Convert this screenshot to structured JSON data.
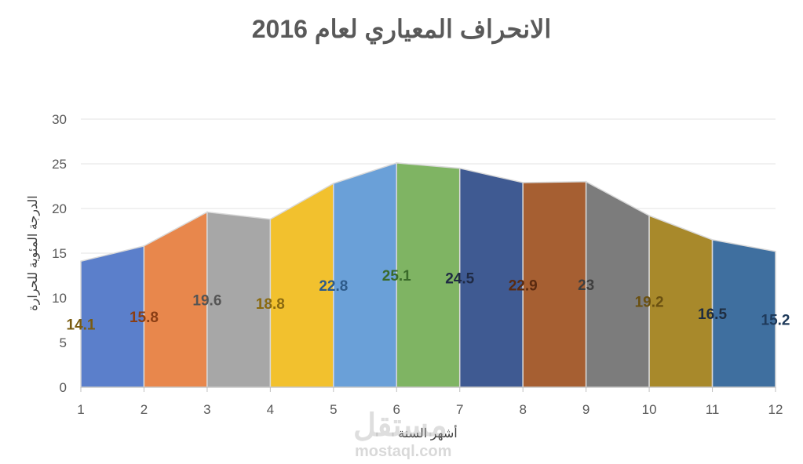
{
  "chart_data": {
    "type": "area",
    "title": "الانحراف المعياري لعام 2016",
    "xlabel": "أشهر السنة",
    "ylabel": "الدرجة المئوية للحرارة",
    "x": [
      1,
      2,
      3,
      4,
      5,
      6,
      7,
      8,
      9,
      10,
      11,
      12
    ],
    "values": [
      14.1,
      15.8,
      19.6,
      18.8,
      22.8,
      25.1,
      24.5,
      22.9,
      23,
      19.2,
      16.5,
      15.2
    ],
    "ylim": [
      0,
      30
    ],
    "yticks": [
      0,
      5,
      10,
      15,
      20,
      25,
      30
    ],
    "grid": true,
    "segment_colors": [
      "#5b7fcb",
      "#e8874c",
      "#a7a7a7",
      "#f2c12e",
      "#6aa0d8",
      "#7fb463",
      "#3f5a92",
      "#a65f32",
      "#7c7c7c",
      "#a8892b",
      "#3f6f9f"
    ],
    "label_colors": [
      "#7a5c10",
      "#8a3e14",
      "#555555",
      "#8a6a10",
      "#2e5b8a",
      "#3a6a2a",
      "#1f2a44",
      "#5a2a10",
      "#3f3f3f",
      "#6a5010",
      "#1f2d40",
      "#1f3a5a"
    ]
  },
  "watermark": {
    "text": "مستقل",
    "url_text": "mostaql.com"
  }
}
